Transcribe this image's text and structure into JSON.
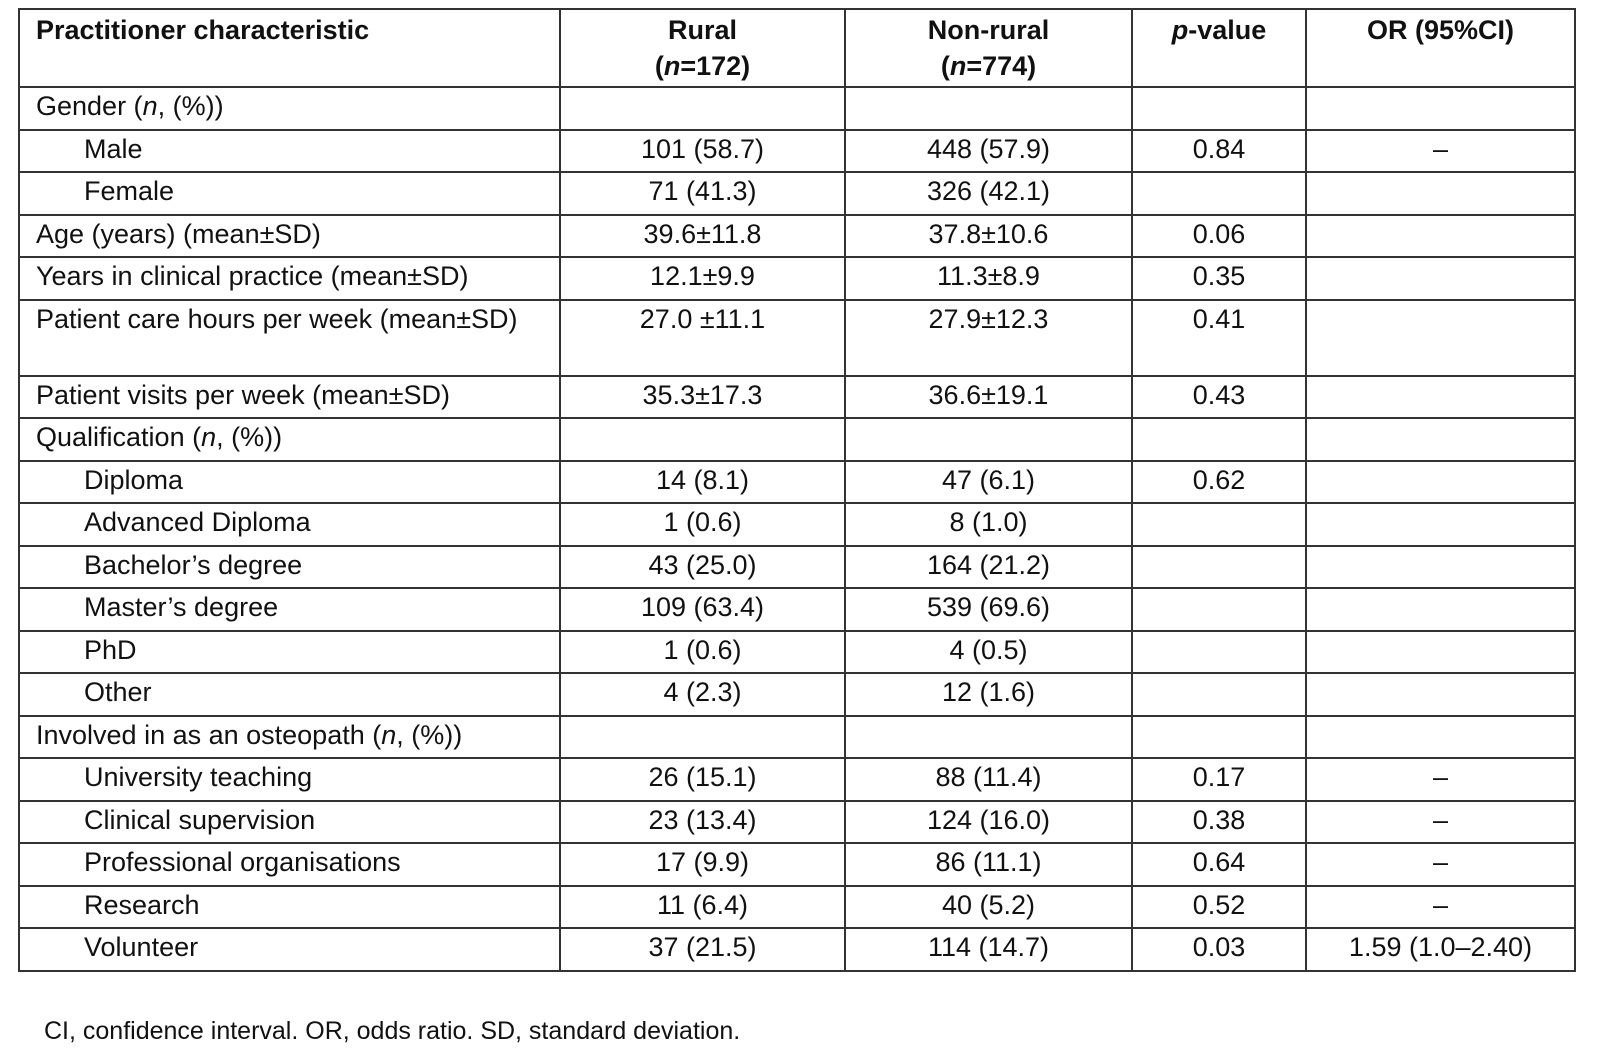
{
  "table": {
    "headers": {
      "characteristic": "Practitioner characteristic",
      "rural_label": "Rural",
      "rural_n_prefix": "n",
      "rural_n_value": "=172)",
      "nonrural_label": "Non-rural",
      "nonrural_n_prefix": "n",
      "nonrural_n_value": "=774)",
      "pvalue_italic": "p",
      "pvalue_rest": "-value",
      "or": "OR (95%CI)"
    },
    "groups": {
      "gender": "Gender (",
      "gender_n": "n",
      "gender_tail": ", (%))",
      "qualification": "Qualification (",
      "qualification_n": "n",
      "qualification_tail": ", (%))",
      "involved": "Involved in as an osteopath (",
      "involved_n": "n",
      "involved_tail": ", (%))"
    },
    "rows": [
      {
        "label": "Male",
        "rural": "101 (58.7)",
        "nonrural": "448 (57.9)",
        "p": "0.84",
        "or": "–"
      },
      {
        "label": "Female",
        "rural": "71 (41.3)",
        "nonrural": "326 (42.1)",
        "p": "",
        "or": ""
      },
      {
        "label": "Age (years) (mean±SD)",
        "rural": "39.6±11.8",
        "nonrural": "37.8±10.6",
        "p": "0.06",
        "or": ""
      },
      {
        "label": "Years in clinical practice (mean±SD)",
        "rural": "12.1±9.9",
        "nonrural": "11.3±8.9",
        "p": "0.35",
        "or": ""
      },
      {
        "label": "Patient care hours per week (mean±SD)",
        "rural": "27.0 ±11.1",
        "nonrural": "27.9±12.3",
        "p": "0.41",
        "or": ""
      },
      {
        "label": "Patient visits per week (mean±SD)",
        "rural": "35.3±17.3",
        "nonrural": "36.6±19.1",
        "p": "0.43",
        "or": ""
      },
      {
        "label": "Diploma",
        "rural": "14 (8.1)",
        "nonrural": "47 (6.1)",
        "p": "0.62",
        "or": ""
      },
      {
        "label": "Advanced Diploma",
        "rural": "1 (0.6)",
        "nonrural": "8 (1.0)",
        "p": "",
        "or": ""
      },
      {
        "label": "Bachelor’s degree",
        "rural": "43 (25.0)",
        "nonrural": "164 (21.2)",
        "p": "",
        "or": ""
      },
      {
        "label": "Master’s degree",
        "rural": "109 (63.4)",
        "nonrural": "539 (69.6)",
        "p": "",
        "or": ""
      },
      {
        "label": "PhD",
        "rural": "1 (0.6)",
        "nonrural": "4 (0.5)",
        "p": "",
        "or": ""
      },
      {
        "label": "Other",
        "rural": "4 (2.3)",
        "nonrural": "12 (1.6)",
        "p": "",
        "or": ""
      },
      {
        "label": "University teaching",
        "rural": "26 (15.1)",
        "nonrural": "88 (11.4)",
        "p": "0.17",
        "or": "–"
      },
      {
        "label": "Clinical supervision",
        "rural": "23 (13.4)",
        "nonrural": "124 (16.0)",
        "p": "0.38",
        "or": "–"
      },
      {
        "label": "Professional organisations",
        "rural": "17 (9.9)",
        "nonrural": "86 (11.1)",
        "p": "0.64",
        "or": "–"
      },
      {
        "label": "Research",
        "rural": "11 (6.4)",
        "nonrural": "40 (5.2)",
        "p": "0.52",
        "or": "–"
      },
      {
        "label": "Volunteer",
        "rural": "37 (21.5)",
        "nonrural": "114 (14.7)",
        "p": "0.03",
        "or": "1.59 (1.0–2.40)"
      }
    ]
  },
  "footnote": "CI, confidence interval. OR, odds ratio. SD, standard deviation."
}
